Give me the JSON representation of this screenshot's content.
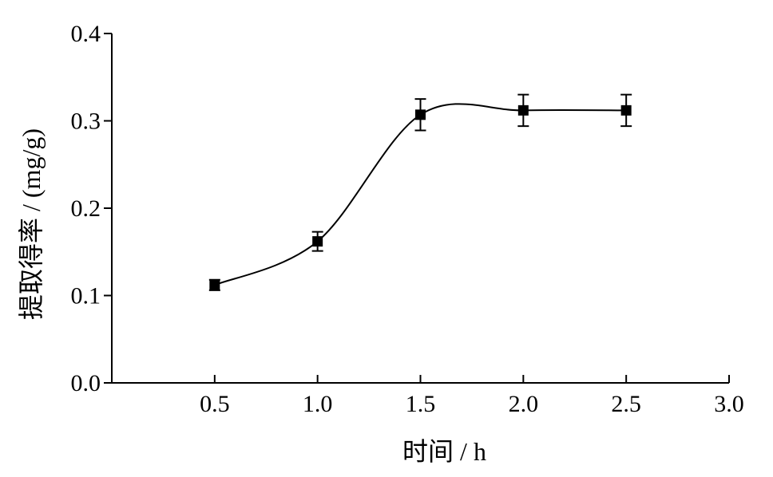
{
  "chart_data": {
    "type": "line",
    "title": "",
    "xlabel": "时间 / h",
    "ylabel": "提取得率 / (mg/g)",
    "xlim": [
      0,
      3.0
    ],
    "ylim": [
      0,
      0.4
    ],
    "x_ticks": [
      0.5,
      1.0,
      1.5,
      2.0,
      2.5,
      3.0
    ],
    "x_tick_labels": [
      "0.5",
      "1.0",
      "1.5",
      "2.0",
      "2.5",
      "3.0"
    ],
    "y_ticks": [
      0,
      0.1,
      0.2,
      0.3,
      0.4
    ],
    "y_tick_labels": [
      "0.0",
      "0.1",
      "0.2",
      "0.3",
      "0.4"
    ],
    "grid": false,
    "marker": "square",
    "smooth": true,
    "series": [
      {
        "x": [
          0.5,
          1.0,
          1.5,
          2.0,
          2.5
        ],
        "y": [
          0.112,
          0.162,
          0.307,
          0.312,
          0.312
        ],
        "error": [
          0.006,
          0.011,
          0.018,
          0.018,
          0.018
        ]
      }
    ]
  }
}
